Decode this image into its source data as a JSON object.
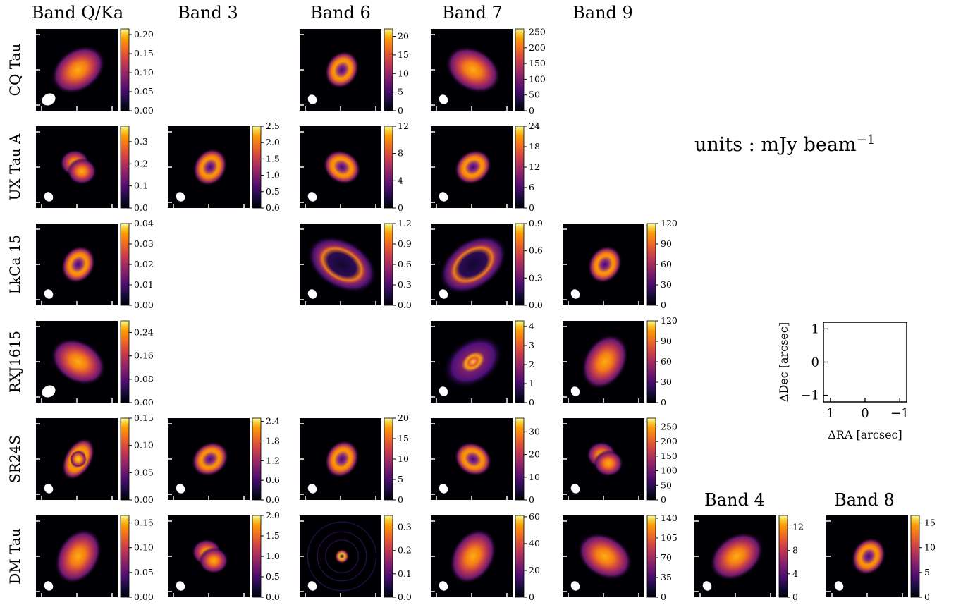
{
  "figure": {
    "band_headers": [
      "Band Q/Ka",
      "Band 3",
      "Band 6",
      "Band 7",
      "Band 9",
      "Band 4",
      "Band 8"
    ],
    "source_labels": [
      "CQ Tau",
      "UX Tau A",
      "LkCa 15",
      "RXJ1615",
      "SR24S",
      "DM Tau"
    ],
    "units_prefix": "units : mJy beam",
    "units_exponent": "−1"
  },
  "chart_data": {
    "type": "heatmap",
    "colormap": "inferno",
    "units": "mJy beam−1",
    "panels": [
      {
        "source": "CQ Tau",
        "band": "Band Q/Ka",
        "colorbar_ticks": [
          "0.00",
          "0.05",
          "0.10",
          "0.15",
          "0.20"
        ],
        "vmin": 0,
        "vmax": 0.215,
        "morphology": "smooth disk",
        "beam": "large ellipse"
      },
      {
        "source": "CQ Tau",
        "band": "Band 6",
        "colorbar_ticks": [
          "0",
          "5",
          "10",
          "15",
          "20"
        ],
        "vmin": 0,
        "vmax": 22,
        "morphology": "ring"
      },
      {
        "source": "CQ Tau",
        "band": "Band 7",
        "colorbar_ticks": [
          "0",
          "50",
          "100",
          "150",
          "200",
          "250"
        ],
        "vmin": 0,
        "vmax": 260,
        "morphology": "smooth disk"
      },
      {
        "source": "UX Tau A",
        "band": "Band Q/Ka",
        "colorbar_ticks": [
          "0.0",
          "0.1",
          "0.2",
          "0.3"
        ],
        "vmin": 0,
        "vmax": 0.37,
        "morphology": "two lobes"
      },
      {
        "source": "UX Tau A",
        "band": "Band 3",
        "colorbar_ticks": [
          "0.0",
          "0.5",
          "1.0",
          "1.5",
          "2.0",
          "2.5"
        ],
        "vmin": 0,
        "vmax": 2.5,
        "morphology": "ring"
      },
      {
        "source": "UX Tau A",
        "band": "Band 6",
        "colorbar_ticks": [
          "0",
          "4",
          "8",
          "12"
        ],
        "vmin": 0,
        "vmax": 12,
        "morphology": "ring"
      },
      {
        "source": "UX Tau A",
        "band": "Band 7",
        "colorbar_ticks": [
          "0",
          "6",
          "12",
          "18",
          "24"
        ],
        "vmin": 0,
        "vmax": 24,
        "morphology": "ring"
      },
      {
        "source": "LkCa 15",
        "band": "Band Q/Ka",
        "colorbar_ticks": [
          "0.00",
          "0.01",
          "0.02",
          "0.03",
          "0.04"
        ],
        "vmin": 0,
        "vmax": 0.04,
        "morphology": "ring"
      },
      {
        "source": "LkCa 15",
        "band": "Band 6",
        "colorbar_ticks": [
          "0.0",
          "0.3",
          "0.6",
          "0.9",
          "1.2"
        ],
        "vmin": 0,
        "vmax": 1.2,
        "morphology": "wide ring"
      },
      {
        "source": "LkCa 15",
        "band": "Band 7",
        "colorbar_ticks": [
          "0.0",
          "0.3",
          "0.6",
          "0.9"
        ],
        "vmin": 0,
        "vmax": 0.9,
        "morphology": "wide ring"
      },
      {
        "source": "LkCa 15",
        "band": "Band 9",
        "colorbar_ticks": [
          "0",
          "30",
          "60",
          "90",
          "120"
        ],
        "vmin": 0,
        "vmax": 120,
        "morphology": "ring"
      },
      {
        "source": "RXJ1615",
        "band": "Band Q/Ka",
        "colorbar_ticks": [
          "0.00",
          "0.08",
          "0.16",
          "0.24"
        ],
        "vmin": 0,
        "vmax": 0.28,
        "morphology": "smooth disk"
      },
      {
        "source": "RXJ1615",
        "band": "Band 7",
        "colorbar_ticks": [
          "0",
          "1",
          "2",
          "3",
          "4"
        ],
        "vmin": 0,
        "vmax": 4.3,
        "morphology": "ring with halo"
      },
      {
        "source": "RXJ1615",
        "band": "Band 9",
        "colorbar_ticks": [
          "0",
          "30",
          "60",
          "90",
          "120"
        ],
        "vmin": 0,
        "vmax": 120,
        "morphology": "smooth disk"
      },
      {
        "source": "SR24S",
        "band": "Band Q/Ka",
        "colorbar_ticks": [
          "0.00",
          "0.05",
          "0.10",
          "0.15"
        ],
        "vmin": 0,
        "vmax": 0.15,
        "morphology": "compact core"
      },
      {
        "source": "SR24S",
        "band": "Band 3",
        "colorbar_ticks": [
          "0.0",
          "0.6",
          "1.2",
          "1.8",
          "2.4"
        ],
        "vmin": 0,
        "vmax": 2.5,
        "morphology": "ring"
      },
      {
        "source": "SR24S",
        "band": "Band 6",
        "colorbar_ticks": [
          "0",
          "5",
          "10",
          "15",
          "20"
        ],
        "vmin": 0,
        "vmax": 20,
        "morphology": "ring"
      },
      {
        "source": "SR24S",
        "band": "Band 7",
        "colorbar_ticks": [
          "0",
          "10",
          "20",
          "30"
        ],
        "vmin": 0,
        "vmax": 36,
        "morphology": "ring"
      },
      {
        "source": "SR24S",
        "band": "Band 9",
        "colorbar_ticks": [
          "0",
          "50",
          "100",
          "150",
          "200",
          "250"
        ],
        "vmin": 0,
        "vmax": 280,
        "morphology": "two lobes"
      },
      {
        "source": "DM Tau",
        "band": "Band Q/Ka",
        "colorbar_ticks": [
          "0.00",
          "0.05",
          "0.10",
          "0.15"
        ],
        "vmin": 0,
        "vmax": 0.165,
        "morphology": "smooth disk"
      },
      {
        "source": "DM Tau",
        "band": "Band 3",
        "colorbar_ticks": [
          "0.0",
          "0.5",
          "1.0",
          "1.5",
          "2.0"
        ],
        "vmin": 0,
        "vmax": 2.0,
        "morphology": "two lobes"
      },
      {
        "source": "DM Tau",
        "band": "Band 6",
        "colorbar_ticks": [
          "0.0",
          "0.1",
          "0.2",
          "0.3"
        ],
        "vmin": 0,
        "vmax": 0.35,
        "morphology": "small ring with faint rings"
      },
      {
        "source": "DM Tau",
        "band": "Band 7",
        "colorbar_ticks": [
          "0",
          "20",
          "40",
          "60"
        ],
        "vmin": 0,
        "vmax": 61,
        "morphology": "smooth disk"
      },
      {
        "source": "DM Tau",
        "band": "Band 9",
        "colorbar_ticks": [
          "0",
          "35",
          "70",
          "105",
          "140"
        ],
        "vmin": 0,
        "vmax": 145,
        "morphology": "smooth disk"
      },
      {
        "source": "DM Tau",
        "band": "Band 4",
        "colorbar_ticks": [
          "0",
          "4",
          "8",
          "12"
        ],
        "vmin": 0,
        "vmax": 14,
        "morphology": "smooth disk"
      },
      {
        "source": "DM Tau",
        "band": "Band 8",
        "colorbar_ticks": [
          "0",
          "5",
          "10",
          "15"
        ],
        "vmin": 0,
        "vmax": 16.5,
        "morphology": "ring"
      }
    ],
    "reference_axes": {
      "xlabel": "ΔRA [arcsec]",
      "ylabel": "ΔDec [arcsec]",
      "x_ticks": [
        "1",
        "0",
        "−1"
      ],
      "y_ticks": [
        "1",
        "0",
        "−1"
      ],
      "xlim": [
        1.2,
        -1.2
      ],
      "ylim": [
        -1.2,
        1.2
      ]
    }
  }
}
